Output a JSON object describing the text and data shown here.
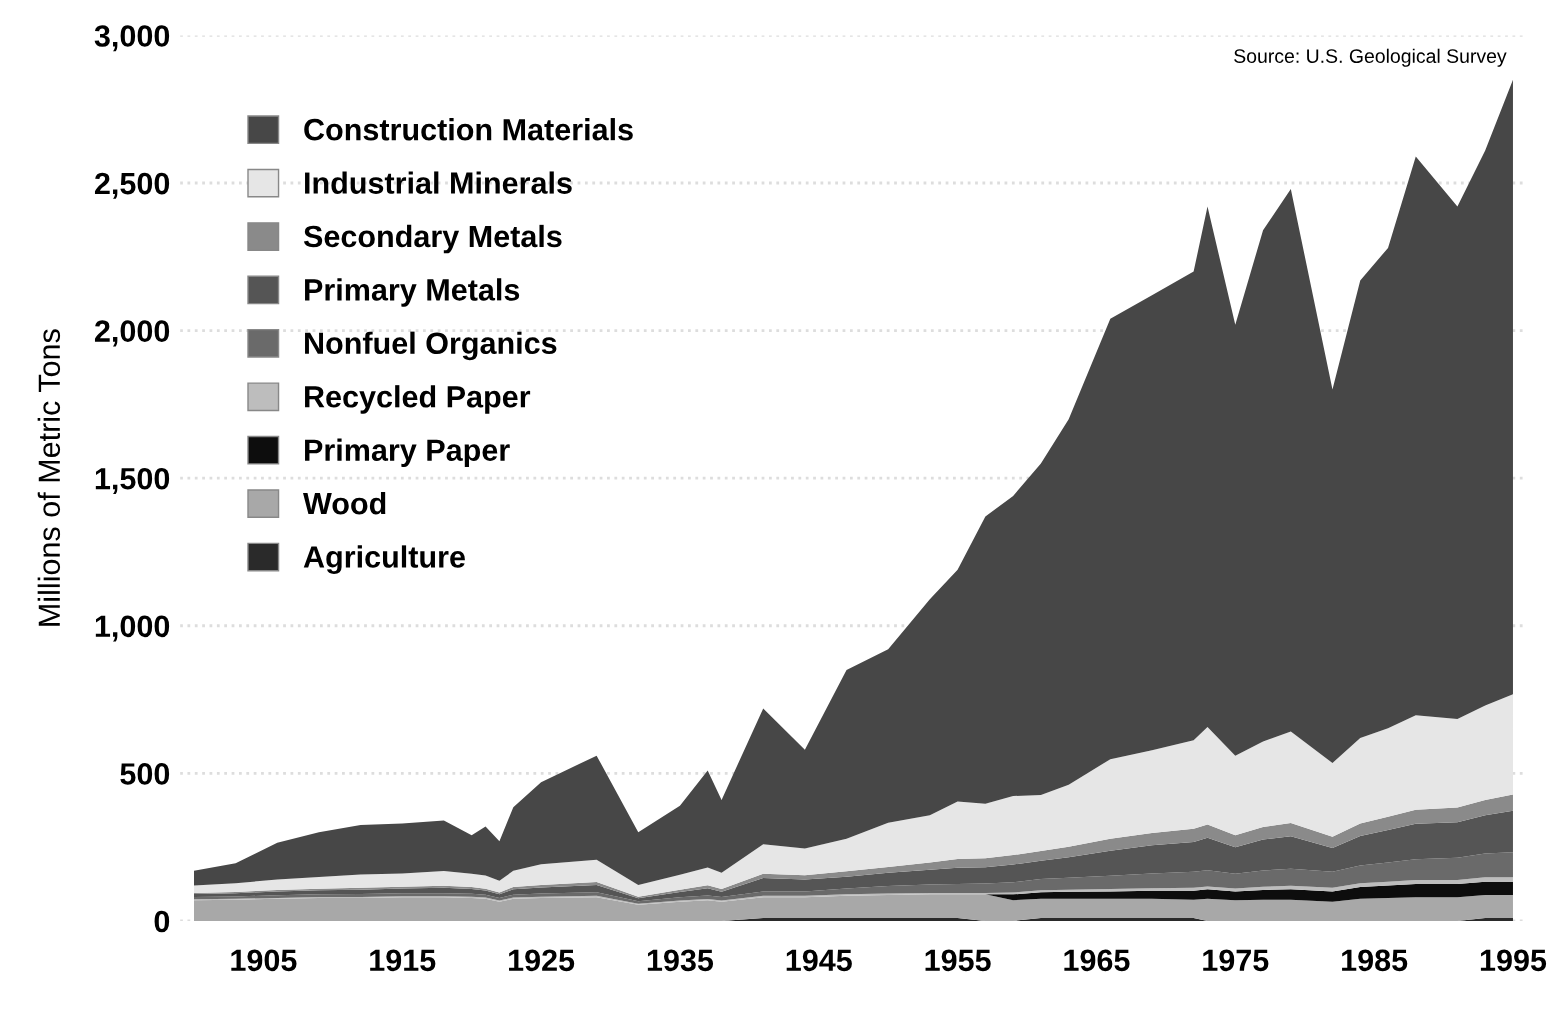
{
  "chart_data": {
    "type": "area",
    "stacked": true,
    "ylabel": "Millions of Metric Tons",
    "annotations": [
      "Source: U.S. Geological Survey"
    ],
    "x": [
      1900,
      1903,
      1906,
      1909,
      1912,
      1915,
      1918,
      1920,
      1921,
      1922,
      1923,
      1925,
      1929,
      1932,
      1935,
      1937,
      1938,
      1941,
      1944,
      1947,
      1950,
      1953,
      1955,
      1957,
      1959,
      1961,
      1963,
      1966,
      1969,
      1972,
      1973,
      1975,
      1977,
      1979,
      1982,
      1984,
      1986,
      1988,
      1991,
      1993,
      1995
    ],
    "xlim": [
      1899,
      1996
    ],
    "xticks": [
      1905,
      1915,
      1925,
      1935,
      1945,
      1955,
      1965,
      1975,
      1985,
      1995
    ],
    "ylim": [
      0,
      3000
    ],
    "yticks": [
      0,
      {
        "value": 500,
        "label": "500"
      },
      {
        "value": 1000,
        "label": "1,000"
      },
      {
        "value": 1500,
        "label": "1,500"
      },
      {
        "value": 2000,
        "label": "2,000"
      },
      {
        "value": 2500,
        "label": "2,500"
      },
      {
        "value": 3000,
        "label": "3,000"
      }
    ],
    "grid": "y",
    "legend": "top left",
    "series": [
      {
        "name": "Agriculture",
        "color": "#2a2a2a",
        "values": [
          0,
          0,
          0,
          0,
          0,
          0,
          0,
          0,
          0,
          0,
          0,
          0,
          0,
          0,
          0,
          0,
          0,
          10,
          10,
          10,
          10,
          10,
          10,
          0,
          0,
          10,
          10,
          10,
          10,
          10,
          0,
          0,
          0,
          0,
          0,
          0,
          0,
          0,
          0,
          10,
          10
        ]
      },
      {
        "name": "Wood",
        "color": "#a8a8a8",
        "values": [
          70,
          72,
          75,
          78,
          78,
          80,
          80,
          78,
          75,
          65,
          75,
          78,
          80,
          55,
          65,
          70,
          65,
          70,
          70,
          75,
          78,
          80,
          80,
          90,
          70,
          65,
          65,
          65,
          65,
          62,
          75,
          70,
          72,
          72,
          65,
          75,
          78,
          80,
          80,
          78,
          78
        ]
      },
      {
        "name": "Primary Paper",
        "color": "#0d0d0d",
        "values": [
          0,
          0,
          0,
          0,
          0,
          0,
          0,
          0,
          0,
          0,
          0,
          0,
          0,
          0,
          0,
          0,
          0,
          0,
          0,
          0,
          0,
          0,
          0,
          0,
          20,
          22,
          24,
          25,
          27,
          30,
          32,
          30,
          33,
          35,
          35,
          40,
          42,
          45,
          45,
          45,
          45
        ]
      },
      {
        "name": "Recycled Paper",
        "color": "#bdbdbd",
        "values": [
          3,
          3,
          3,
          3,
          3,
          4,
          4,
          4,
          4,
          4,
          4,
          4,
          5,
          3,
          4,
          4,
          4,
          5,
          5,
          5,
          5,
          5,
          5,
          5,
          6,
          7,
          7,
          8,
          9,
          10,
          10,
          10,
          11,
          12,
          12,
          13,
          13,
          14,
          14,
          15,
          15
        ]
      },
      {
        "name": "Nonfuel Organics",
        "color": "#6a6a6a",
        "values": [
          8,
          8,
          9,
          9,
          10,
          10,
          10,
          10,
          10,
          9,
          10,
          11,
          12,
          9,
          11,
          12,
          12,
          15,
          15,
          20,
          25,
          28,
          30,
          32,
          35,
          38,
          40,
          45,
          50,
          55,
          55,
          50,
          55,
          58,
          55,
          60,
          65,
          70,
          75,
          80,
          85
        ]
      },
      {
        "name": "Primary Metals",
        "color": "#555555",
        "values": [
          10,
          11,
          13,
          14,
          15,
          16,
          18,
          16,
          14,
          12,
          18,
          20,
          25,
          10,
          18,
          25,
          18,
          45,
          40,
          40,
          45,
          50,
          55,
          55,
          60,
          62,
          70,
          85,
          95,
          100,
          110,
          90,
          105,
          110,
          80,
          100,
          110,
          120,
          120,
          130,
          140
        ]
      },
      {
        "name": "Secondary Metals",
        "color": "#8a8a8a",
        "values": [
          4,
          4,
          5,
          5,
          6,
          6,
          7,
          7,
          6,
          6,
          8,
          9,
          10,
          5,
          8,
          10,
          9,
          15,
          15,
          18,
          20,
          25,
          30,
          30,
          32,
          33,
          35,
          40,
          42,
          45,
          45,
          40,
          42,
          45,
          38,
          42,
          45,
          48,
          50,
          52,
          55
        ]
      },
      {
        "name": "Industrial Minerals",
        "color": "#e6e6e6",
        "values": [
          25,
          30,
          35,
          40,
          45,
          45,
          50,
          45,
          45,
          40,
          55,
          70,
          75,
          40,
          50,
          60,
          55,
          100,
          90,
          110,
          150,
          160,
          195,
          185,
          200,
          190,
          210,
          270,
          280,
          300,
          330,
          270,
          290,
          310,
          250,
          290,
          300,
          320,
          300,
          320,
          340
        ]
      },
      {
        "name": "Construction Materials",
        "color": "#474747",
        "values": [
          50,
          67,
          125,
          151,
          168,
          169,
          171,
          130,
          166,
          134,
          215,
          278,
          353,
          178,
          234,
          329,
          247,
          460,
          335,
          572,
          587,
          732,
          785,
          973,
          1017,
          1123,
          1239,
          1492,
          1542,
          1588,
          1763,
          1460,
          1732,
          1838,
          1265,
          1550,
          1627,
          1893,
          1736,
          1880,
          2082
        ]
      }
    ]
  }
}
